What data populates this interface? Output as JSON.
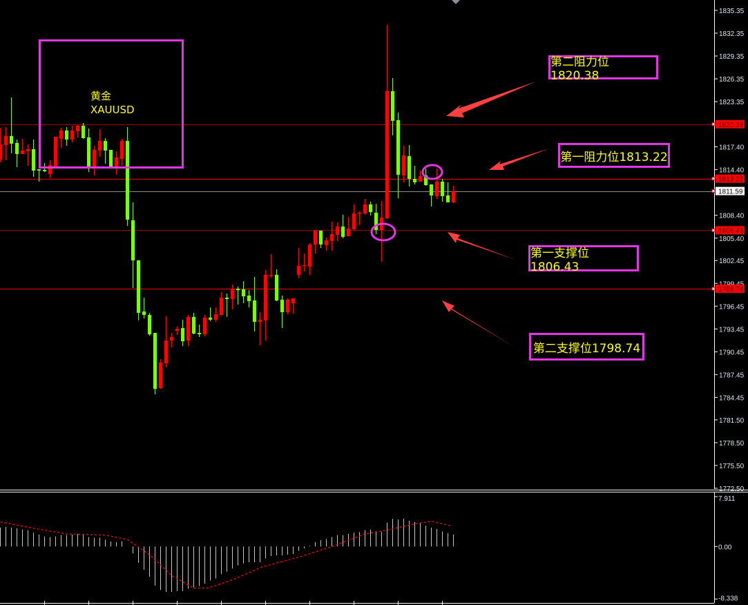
{
  "chart_data": {
    "type": "candlestick",
    "symbol_label": "XAUUSD",
    "symbol_name": "黄金",
    "colors": {
      "up": "#ff0000",
      "down": "#7cfc00",
      "level_line": "#ff0000",
      "bid_line": "#8a9099",
      "annotation_border": "#e236e2",
      "annotation_text": "#ffff00",
      "arrow": "#ff4040",
      "macd_hist": "#c8c8c8",
      "macd_signal": "#ff0000"
    },
    "ylim": [
      1772.5,
      1835.35
    ],
    "y_ticks": [
      "1835.35",
      "1832.35",
      "1829.35",
      "1826.35",
      "1823.35",
      "1817.40",
      "1814.40",
      "1808.40",
      "1805.40",
      "1802.45",
      "1799.45",
      "1796.45",
      "1793.45",
      "1790.45",
      "1787.45",
      "1784.45",
      "1781.50",
      "1778.50",
      "1775.50",
      "1772.50"
    ],
    "price_badges": [
      {
        "value": "1820.38",
        "kind": "level"
      },
      {
        "value": "1813.22",
        "kind": "level"
      },
      {
        "value": "1811.59",
        "kind": "bid"
      },
      {
        "value": "1806.43",
        "kind": "level"
      },
      {
        "value": "1798.74",
        "kind": "level"
      }
    ],
    "ohlc": [
      [
        1815.73,
        1819.91,
        1815.37,
        1817.73
      ],
      [
        1817.64,
        1820.0,
        1815.64,
        1818.82
      ],
      [
        1818.82,
        1823.91,
        1816.55,
        1817.82
      ],
      [
        1817.91,
        1818.37,
        1814.73,
        1816.46
      ],
      [
        1816.46,
        1818.46,
        1816.46,
        1816.91
      ],
      [
        1816.82,
        1817.73,
        1814.91,
        1817.09
      ],
      [
        1817.09,
        1818.37,
        1813.46,
        1814.28
      ],
      [
        1814.46,
        1814.46,
        1812.83,
        1814.28
      ],
      [
        1814.37,
        1815.28,
        1814.1,
        1814.19
      ],
      [
        1813.82,
        1815.64,
        1813.28,
        1815.01
      ],
      [
        1814.73,
        1818.73,
        1814.73,
        1818.73
      ],
      [
        1818.46,
        1819.91,
        1817.28,
        1819.55
      ],
      [
        1819.55,
        1820.0,
        1817.55,
        1818.37
      ],
      [
        1818.37,
        1820.18,
        1818.0,
        1819.55
      ],
      [
        1819.46,
        1820.27,
        1818.64,
        1820.18
      ],
      [
        1820.18,
        1820.55,
        1818.46,
        1818.55
      ],
      [
        1818.64,
        1819.82,
        1814.1,
        1814.73
      ],
      [
        1814.73,
        1817.55,
        1813.64,
        1817.0
      ],
      [
        1816.91,
        1819.73,
        1816.09,
        1818.18
      ],
      [
        1818.18,
        1818.55,
        1815.19,
        1816.91
      ],
      [
        1817.0,
        1817.0,
        1814.64,
        1814.64
      ],
      [
        1814.64,
        1816.82,
        1813.73,
        1816.0
      ],
      [
        1815.81,
        1818.46,
        1814.91,
        1818.18
      ],
      [
        1818.18,
        1820.0,
        1807.01,
        1807.83
      ],
      [
        1807.74,
        1810.1,
        1798.84,
        1802.47
      ],
      [
        1802.47,
        1802.5,
        1794.58,
        1795.57
      ],
      [
        1795.75,
        1797.57,
        1794.85,
        1795.3
      ],
      [
        1795.3,
        1795.57,
        1792.57,
        1792.75
      ],
      [
        1792.93,
        1792.93,
        1784.85,
        1785.58
      ],
      [
        1785.67,
        1789.48,
        1785.58,
        1789.03
      ],
      [
        1788.94,
        1795.12,
        1788.39,
        1791.93
      ],
      [
        1791.93,
        1792.93,
        1791.03,
        1792.39
      ],
      [
        1793.21,
        1793.76,
        1792.66,
        1793.48
      ],
      [
        1793.57,
        1794.67,
        1791.21,
        1791.84
      ],
      [
        1791.93,
        1795.3,
        1791.21,
        1795.03
      ],
      [
        1795.03,
        1795.57,
        1792.75,
        1792.84
      ],
      [
        1792.93,
        1794.03,
        1792.39,
        1792.75
      ],
      [
        1792.75,
        1795.3,
        1792.48,
        1794.94
      ],
      [
        1794.94,
        1796.29,
        1794.48,
        1794.67
      ],
      [
        1794.67,
        1796.29,
        1794.39,
        1795.39
      ],
      [
        1795.3,
        1798.29,
        1795.21,
        1797.57
      ],
      [
        1797.57,
        1798.11,
        1795.03,
        1797.39
      ],
      [
        1797.39,
        1799.29,
        1796.02,
        1798.66
      ],
      [
        1798.75,
        1799.02,
        1796.66,
        1798.56
      ],
      [
        1798.66,
        1799.74,
        1796.84,
        1797.75
      ],
      [
        1797.84,
        1798.56,
        1796.29,
        1797.11
      ],
      [
        1797.2,
        1800.29,
        1793.12,
        1794.39
      ],
      [
        1794.39,
        1795.66,
        1791.3,
        1794.67
      ],
      [
        1794.58,
        1801.2,
        1791.93,
        1800.56
      ],
      [
        1800.47,
        1803.29,
        1800.19,
        1800.56
      ],
      [
        1800.56,
        1801.29,
        1797.11,
        1797.2
      ],
      [
        1797.3,
        1797.84,
        1793.57,
        1795.66
      ],
      [
        1795.66,
        1797.48,
        1795.39,
        1797.3
      ],
      [
        1796.84,
        1797.48,
        1795.48,
        1797.48
      ],
      [
        1800.56,
        1804.11,
        1800.11,
        1801.74
      ],
      [
        1801.74,
        1803.38,
        1801.02,
        1801.83
      ],
      [
        1801.65,
        1804.74,
        1800.56,
        1804.56
      ],
      [
        1804.56,
        1806.38,
        1803.38,
        1806.38
      ],
      [
        1806.38,
        1806.38,
        1804.11,
        1804.56
      ],
      [
        1804.47,
        1805.47,
        1803.74,
        1805.11
      ],
      [
        1805.02,
        1807.56,
        1803.74,
        1805.92
      ],
      [
        1805.83,
        1807.47,
        1805.02,
        1806.92
      ],
      [
        1806.92,
        1808.47,
        1805.38,
        1805.56
      ],
      [
        1805.65,
        1808.19,
        1805.65,
        1806.65
      ],
      [
        1806.56,
        1809.83,
        1806.47,
        1808.65
      ],
      [
        1808.65,
        1808.92,
        1807.1,
        1808.74
      ],
      [
        1808.65,
        1810.55,
        1808.47,
        1809.83
      ],
      [
        1809.83,
        1810.19,
        1808.38,
        1808.83
      ],
      [
        1808.74,
        1809.9,
        1805.92,
        1806.47
      ],
      [
        1806.47,
        1810.28,
        1802.29,
        1808.1
      ],
      [
        1808.01,
        1833.44,
        1807.92,
        1824.72
      ],
      [
        1824.72,
        1826.45,
        1818.91,
        1820.82
      ],
      [
        1820.91,
        1821.91,
        1810.64,
        1813.73
      ],
      [
        1813.64,
        1817.55,
        1812.73,
        1816.27
      ],
      [
        1816.18,
        1817.64,
        1812.19,
        1813.19
      ],
      [
        1813.19,
        1814.91,
        1812.46,
        1812.73
      ],
      [
        1812.83,
        1814.28,
        1812.83,
        1813.55
      ],
      [
        1813.64,
        1814.55,
        1812.28,
        1812.37
      ],
      [
        1812.46,
        1812.46,
        1809.56,
        1811.01
      ],
      [
        1810.92,
        1814.55,
        1810.55,
        1812.83
      ],
      [
        1812.83,
        1813.19,
        1810.19,
        1810.92
      ],
      [
        1811.01,
        1812.73,
        1810.1,
        1810.1
      ],
      [
        1810.1,
        1812.28,
        1810.01,
        1811.59
      ]
    ],
    "macd": {
      "ylim": [
        -8.338,
        7.911
      ],
      "y_ticks": [
        "7.911",
        "0.00",
        "-8.338"
      ],
      "histogram": [
        3.0,
        3.1,
        3.0,
        2.9,
        2.7,
        2.6,
        2.2,
        1.9,
        1.6,
        1.5,
        1.6,
        1.8,
        1.8,
        1.9,
        2.0,
        1.9,
        1.5,
        1.4,
        1.4,
        1.1,
        0.8,
        0.7,
        0.8,
        0.0,
        -1.1,
        -2.6,
        -3.7,
        -4.8,
        -6.2,
        -6.9,
        -7.2,
        -7.2,
        -7.1,
        -7.1,
        -6.7,
        -6.5,
        -6.3,
        -5.9,
        -5.4,
        -5.1,
        -4.4,
        -4.0,
        -3.5,
        -3.0,
        -2.7,
        -2.5,
        -2.5,
        -2.5,
        -1.9,
        -1.5,
        -1.4,
        -1.4,
        -1.3,
        -1.2,
        -0.7,
        -0.3,
        0.1,
        0.7,
        1.0,
        1.2,
        1.5,
        1.8,
        1.8,
        2.0,
        2.2,
        2.3,
        2.6,
        2.7,
        2.4,
        2.3,
        3.8,
        4.4,
        4.3,
        4.4,
        4.1,
        3.9,
        3.8,
        3.3,
        3.0,
        2.8,
        2.4,
        2.1,
        1.9
      ],
      "signal": [
        [
          0,
          3.9
        ],
        [
          6,
          2.9
        ],
        [
          12,
          2.0
        ],
        [
          19,
          1.8
        ],
        [
          23,
          1.1
        ],
        [
          27,
          -1.3
        ],
        [
          31,
          -4.6
        ],
        [
          35,
          -6.6
        ],
        [
          37.5,
          -6.6
        ],
        [
          41,
          -5.6
        ],
        [
          42.5,
          -5.1
        ],
        [
          47.5,
          -3.2
        ],
        [
          54,
          -1.7
        ],
        [
          60,
          0.0
        ],
        [
          66,
          2.0
        ],
        [
          70,
          2.6
        ],
        [
          75,
          3.6
        ],
        [
          78,
          4.0
        ],
        [
          81.5,
          3.3
        ]
      ]
    }
  },
  "annotations": {
    "resistance_2": "第二阻力位1820.38",
    "resistance_1": "第一阻力位1813.22",
    "support_1": "第一支撑位1806.43",
    "support_2": "第二支撑位1798.74"
  }
}
